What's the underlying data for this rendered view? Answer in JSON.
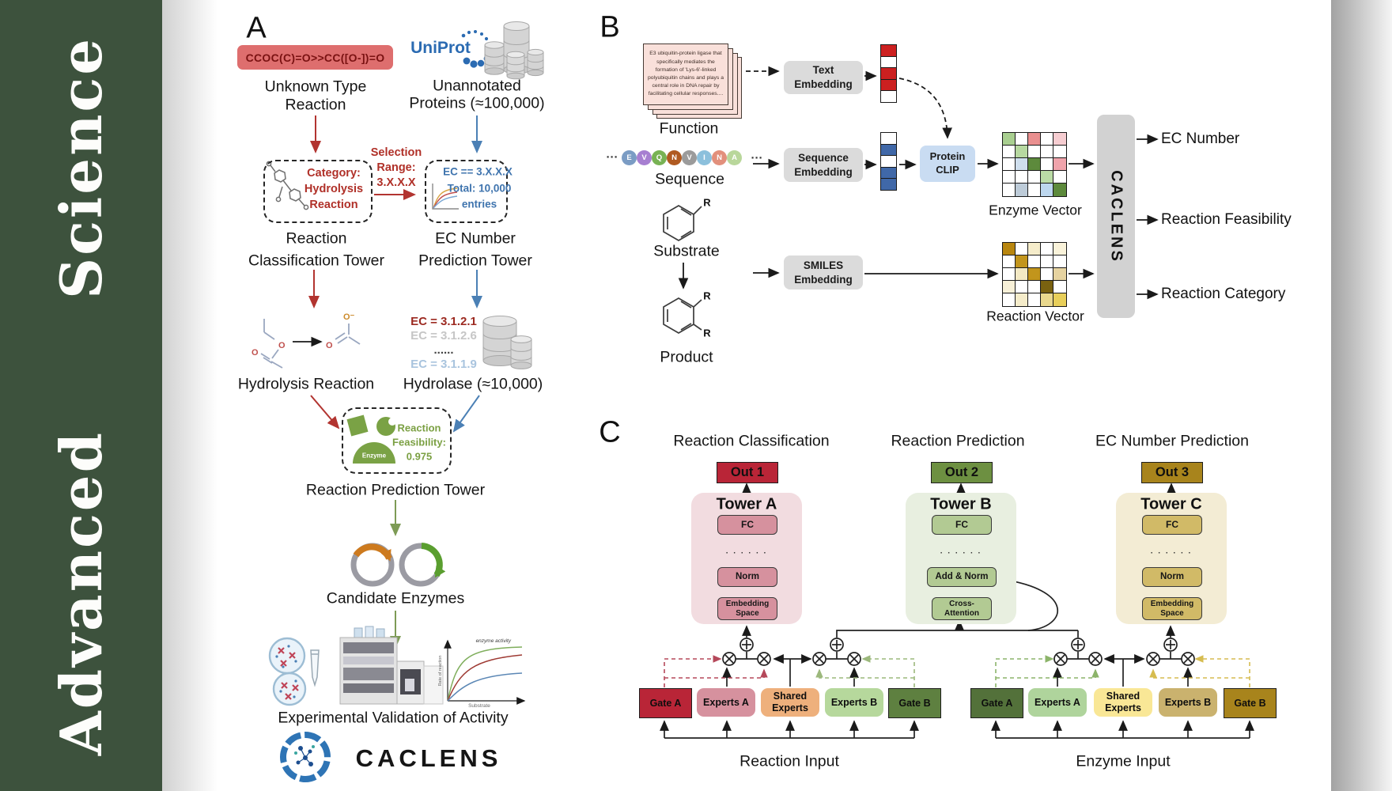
{
  "journal": {
    "title": "Advanced  Science",
    "sidebar_color": "#3d523d"
  },
  "colors": {
    "arrow_red": "#b23430",
    "arrow_blue": "#4b80b5",
    "arrow_green": "#7d9b55",
    "uniprot_blue": "#2b6bb2",
    "smiles_box_bg": "#de6e6e",
    "smiles_text": "#7a1212",
    "caclens_bar_bg": "#d2d2d2",
    "protein_clip_bg": "#c9dcf2"
  },
  "panelA": {
    "label": "A",
    "smiles_box": "CCOC(C)=O>>CC([O-])=O",
    "unknown_line1": "Unknown Type",
    "unknown_line2": "Reaction",
    "uniprot": "UniProt",
    "unannotated_line1": "Unannotated",
    "unannotated_line2": "Proteins (≈100,000)",
    "category_line1": "Category:",
    "category_line2": "Hydrolysis",
    "category_line3": "Reaction",
    "selection_line1": "Selection",
    "selection_line2": "Range:",
    "selection_line3": "3.X.X.X",
    "ec_filter_line1": "EC == 3.X.X.X",
    "ec_filter_line2": "Total: 10,000",
    "ec_filter_line3": "entries",
    "tower1_line1": "Reaction",
    "tower1_line2": "Classification Tower",
    "tower2_line1": "EC Number",
    "tower2_line2": "Prediction Tower",
    "ec_list": [
      {
        "text": "EC = 3.1.2.1",
        "color": "#9c2a21",
        "bold": true
      },
      {
        "text": "EC = 3.1.2.6",
        "color": "#c6c6c6",
        "bold": false
      },
      {
        "text": "......",
        "color": "#444444",
        "bold": true
      },
      {
        "text": "EC = 3.1.1.9",
        "color": "#a9c4de",
        "bold": false
      }
    ],
    "hydrolysis_label": "Hydrolysis Reaction",
    "hydrolase_label": "Hydrolase (≈10,000)",
    "enzyme_badge": "Enzyme",
    "feasibility_line1": "Reaction",
    "feasibility_line2": "Feasibility:",
    "feasibility_line3": "0.975",
    "tower3_label": "Reaction Prediction Tower",
    "candidate_label": "Candidate Enzymes",
    "activity_plot": {
      "curve_label": "enzyme activity",
      "ylabel": "Rate of reaction",
      "xlabel": "Substrate"
    },
    "validation_label": "Experimental Validation of Activity",
    "brand": "CACLENS"
  },
  "panelB": {
    "label": "B",
    "function_card_text": "E3 ubiquitin-protein ligase that specifically mediates the formation of 'Lys-6'-linked polyubiquitin chains and plays a central role in DNA repair by facilitating cellular responses....",
    "function_label": "Function",
    "sequence_pre": "···",
    "sequence_post": "···",
    "sequence": [
      {
        "letter": "E",
        "color": "#7b9cc4"
      },
      {
        "letter": "V",
        "color": "#a77fd1"
      },
      {
        "letter": "Q",
        "color": "#78b254"
      },
      {
        "letter": "N",
        "color": "#b05a21"
      },
      {
        "letter": "V",
        "color": "#9b9b9b"
      },
      {
        "letter": "I",
        "color": "#8cc0dc"
      },
      {
        "letter": "N",
        "color": "#e2907c"
      },
      {
        "letter": "A",
        "color": "#b9d79b"
      }
    ],
    "sequence_label": "Sequence",
    "substrate_label": "Substrate",
    "product_label": "Product",
    "r_top": "R",
    "r_prod1": "R",
    "r_prod2": "R",
    "text_embedding": [
      "Text",
      "Embedding"
    ],
    "sequence_embedding": [
      "Sequence",
      "Embedding"
    ],
    "smiles_embedding": [
      "SMILES",
      "Embedding"
    ],
    "protein_clip": [
      "Protein",
      "CLIP"
    ],
    "text_vector": [
      "#cc2020",
      "#ffffff",
      "#cc2020",
      "#cc2020",
      "#ffffff"
    ],
    "seq_vector": [
      "#ffffff",
      "#4068a8",
      "#ffffff",
      "#4068a8",
      "#4068a8"
    ],
    "enzyme_grid": [
      [
        "#a9cf90",
        "#ffffff",
        "#e98f8f",
        "#ffffff",
        "#f6cdd1"
      ],
      [
        "#ffffff",
        "#b7d8a0",
        "#ffffff",
        "#ffffff",
        "#ffffff"
      ],
      [
        "#ffffff",
        "#cfdfee",
        "#5d8a3c",
        "#ffffff",
        "#f0a3ab"
      ],
      [
        "#ffffff",
        "#ffffff",
        "#ffffff",
        "#bbdca6",
        "#ffffff"
      ],
      [
        "#ffffff",
        "#bdcbd8",
        "#ffffff",
        "#bdd7ee",
        "#5d8a3c"
      ]
    ],
    "reaction_grid": [
      [
        "#b8860f",
        "#ffffff",
        "#f5ecca",
        "#ffffff",
        "#faf3da"
      ],
      [
        "#ffffff",
        "#c2951c",
        "#ffffff",
        "#ffffff",
        "#ffffff"
      ],
      [
        "#ffffff",
        "#f3e9c4",
        "#c2951c",
        "#ffffff",
        "#e6d3a0"
      ],
      [
        "#f8f1d8",
        "#ffffff",
        "#ffffff",
        "#7a6210",
        "#ffffff"
      ],
      [
        "#ffffff",
        "#f5ecca",
        "#ffffff",
        "#ead98e",
        "#e8cf5a"
      ]
    ],
    "enzyme_vector_label": "Enzyme Vector",
    "reaction_vector_label": "Reaction Vector",
    "caclens_bar": "CACLENS",
    "output1": "EC Number",
    "output2": "Reaction Feasibility",
    "output3": "Reaction Category"
  },
  "panelC": {
    "label": "C",
    "col_title1": "Reaction Classification",
    "col_title2": "Reaction Prediction",
    "col_title3": "EC Number Prediction",
    "towers": [
      {
        "out": "Out 1",
        "name": "Tower A",
        "fc": "FC",
        "dots": ". . . . . .",
        "mid": "Norm",
        "bottom1": "Embedding",
        "bottom2": "Space"
      },
      {
        "out": "Out 2",
        "name": "Tower B",
        "fc": "FC",
        "dots": ". . . . . .",
        "mid": "Add & Norm",
        "bottom1": "Cross-",
        "bottom2": "Attention"
      },
      {
        "out": "Out 3",
        "name": "Tower C",
        "fc": "FC",
        "dots": ". . . . . .",
        "mid": "Norm",
        "bottom1": "Embedding",
        "bottom2": "Space"
      }
    ],
    "moe_reaction": {
      "gate_a": "Gate A",
      "experts_a": "Experts A",
      "shared1": "Shared",
      "shared2": "Experts",
      "experts_b": "Experts B",
      "gate_b": "Gate B",
      "input": "Reaction Input"
    },
    "moe_enzyme": {
      "gate_a": "Gate A",
      "experts_a": "Experts A",
      "shared1": "Shared",
      "shared2": "Experts",
      "experts_b": "Experts B",
      "gate_b": "Gate B",
      "input": "Enzyme Input"
    }
  }
}
